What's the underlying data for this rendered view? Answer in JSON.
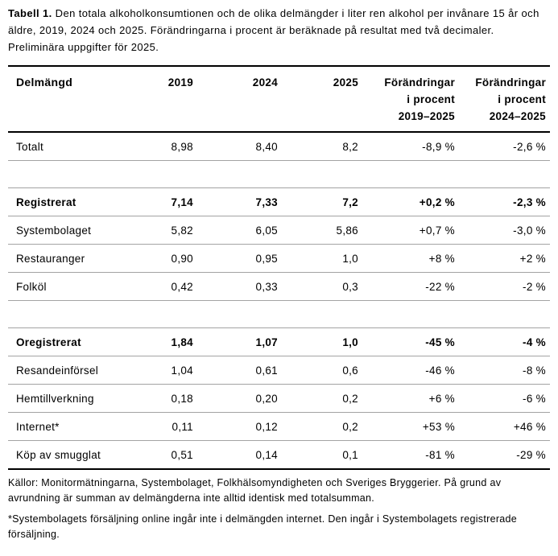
{
  "chart_data": {
    "type": "table",
    "title_label": "Tabell 1.",
    "title": "Den totala alkoholkonsumtionen och de olika delmängder i liter ren alkohol per invånare 15 år och äldre, 2019, 2024 och 2025. Förändringarna i procent är beräknade på resultat med två decimaler. Preliminära uppgifter för 2025.",
    "columns": [
      "Delmängd",
      "2019",
      "2024",
      "2025",
      "Förändringar\ni procent\n2019–2025",
      "Förändringar\ni procent\n2024–2025"
    ],
    "rows": [
      {
        "label": "Totalt",
        "bold": false,
        "values": [
          "8,98",
          "8,40",
          "8,2",
          "-8,9 %",
          "-2,6 %"
        ]
      },
      {
        "label": "Registrerat",
        "bold": true,
        "values": [
          "7,14",
          "7,33",
          "7,2",
          "+0,2 %",
          "-2,3 %"
        ]
      },
      {
        "label": "Systembolaget",
        "bold": false,
        "values": [
          "5,82",
          "6,05",
          "5,86",
          "+0,7 %",
          "-3,0 %"
        ]
      },
      {
        "label": "Restauranger",
        "bold": false,
        "values": [
          "0,90",
          "0,95",
          "1,0",
          "+8 %",
          "+2 %"
        ]
      },
      {
        "label": "Folköl",
        "bold": false,
        "values": [
          "0,42",
          "0,33",
          "0,3",
          "-22 %",
          "-2 %"
        ]
      },
      {
        "label": "Oregistrerat",
        "bold": true,
        "values": [
          "1,84",
          "1,07",
          "1,0",
          "-45 %",
          "-4 %"
        ]
      },
      {
        "label": "Resandeinförsel",
        "bold": false,
        "values": [
          "1,04",
          "0,61",
          "0,6",
          "-46 %",
          "-8 %"
        ]
      },
      {
        "label": "Hemtillverkning",
        "bold": false,
        "values": [
          "0,18",
          "0,20",
          "0,2",
          "+6 %",
          "-6 %"
        ]
      },
      {
        "label": "Internet*",
        "bold": false,
        "values": [
          "0,11",
          "0,12",
          "0,2",
          "+53 %",
          "+46 %"
        ]
      },
      {
        "label": "Köp av smugglat",
        "bold": false,
        "values": [
          "0,51",
          "0,14",
          "0,1",
          "-81 %",
          "-29 %"
        ]
      }
    ],
    "footnotes": [
      "Källor: Monitormätningarna, Systembolaget, Folkhälsomyndigheten och Sveriges Bryggerier. På grund av avrundning är summan av delmängderna inte alltid identisk med totalsumman.",
      "*Systembolagets försäljning online ingår inte i delmängden internet. Den ingår i Systembolagets registrerade försäljning."
    ],
    "layout": {
      "frame_line_color": "#000000",
      "row_separator_color": "#a3a3a3",
      "text_color": "#000000",
      "numeric_alignment": "right"
    }
  }
}
